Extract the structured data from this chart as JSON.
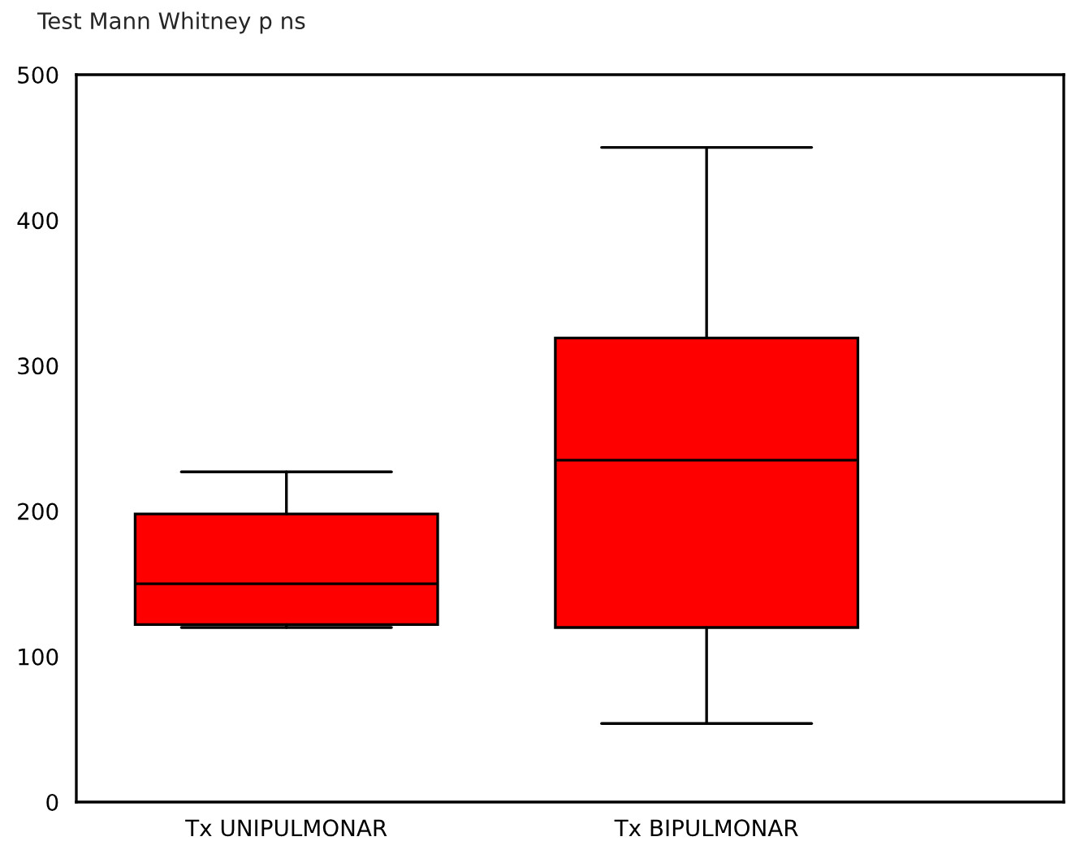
{
  "chart_data": {
    "type": "box",
    "title": "Test Mann Whitney p ns",
    "categories": [
      "Tx UNIPULMONAR",
      "Tx BIPULMONAR"
    ],
    "boxes": [
      {
        "low": 120,
        "q1": 122,
        "median": 150,
        "q3": 198,
        "high": 227
      },
      {
        "low": 54,
        "q1": 120,
        "median": 235,
        "q3": 319,
        "high": 450
      }
    ],
    "color": "#ff0000",
    "ylim": [
      0,
      500
    ],
    "yticks": [
      0,
      100,
      200,
      300,
      400,
      500
    ],
    "grid": false
  }
}
